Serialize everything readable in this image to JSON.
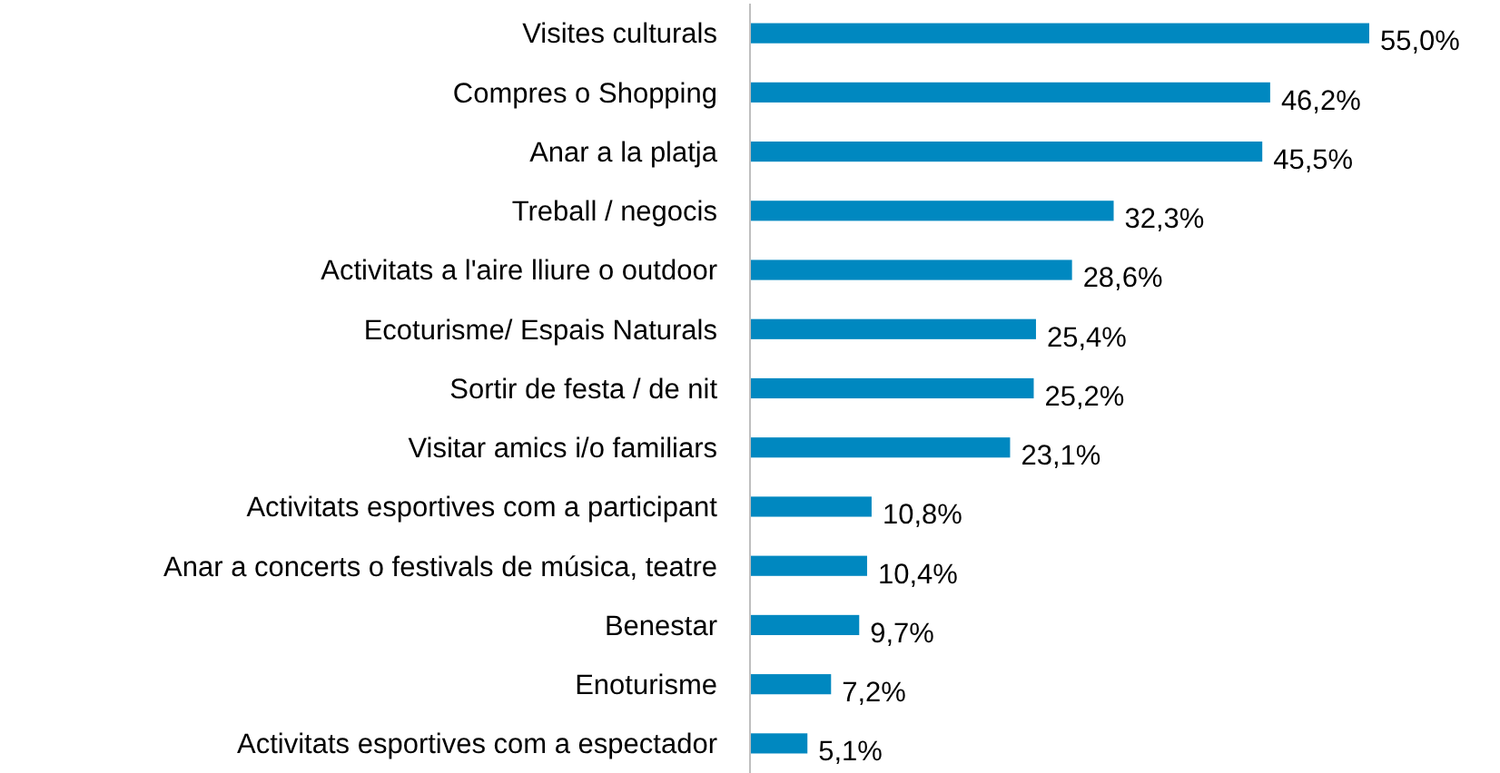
{
  "chart_data": {
    "type": "bar",
    "orientation": "horizontal",
    "categories": [
      "Visites culturals",
      "Compres o Shopping",
      "Anar a la platja",
      "Treball / negocis",
      "Activitats a l'aire lliure o outdoor",
      "Ecoturisme/ Espais Naturals",
      "Sortir de festa / de nit",
      "Visitar amics i/o familiars",
      "Activitats esportives com a participant",
      "Anar a concerts o festivals de música, teatre",
      "Benestar",
      "Enoturisme",
      "Activitats esportives com a espectador"
    ],
    "values": [
      55.0,
      46.2,
      45.5,
      32.3,
      28.6,
      25.4,
      25.2,
      23.1,
      10.8,
      10.4,
      9.7,
      7.2,
      5.1
    ],
    "value_labels": [
      "55,0%",
      "46,2%",
      "45,5%",
      "32,3%",
      "28,6%",
      "25,4%",
      "25,2%",
      "23,1%",
      "10,8%",
      "10,4%",
      "9,7%",
      "7,2%",
      "5,1%"
    ],
    "color": "#0088c0"
  }
}
